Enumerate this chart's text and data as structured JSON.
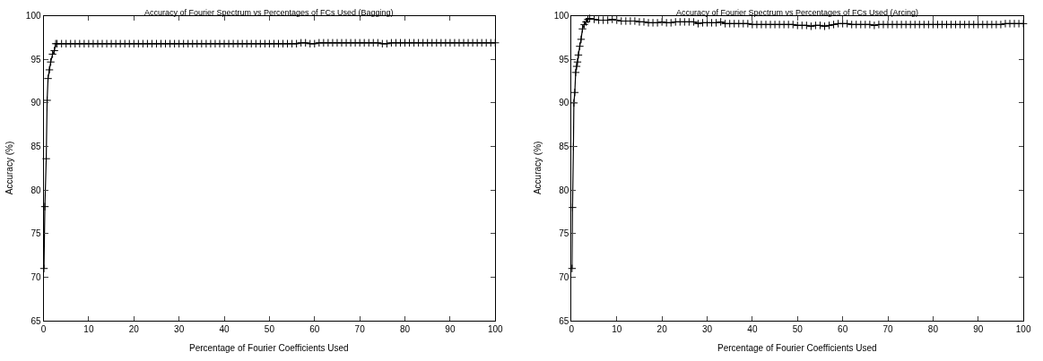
{
  "chart_data": [
    {
      "type": "line",
      "title": "Accuracy of Fourier Spectrum vs Percentages of FCs Used (Bagging)",
      "xlabel": "Percentage of Fourier Coefficients Used",
      "ylabel": "Accuracy (%)",
      "xlim": [
        0,
        100
      ],
      "xticks": [
        0,
        10,
        20,
        30,
        40,
        50,
        60,
        70,
        80,
        90,
        100
      ],
      "ylim": [
        65,
        100
      ],
      "yticks": [
        65,
        70,
        75,
        80,
        85,
        90,
        95,
        100
      ],
      "marker": "cross",
      "line_style": "solid",
      "series": [
        {
          "color": "#000000",
          "x": [
            0.1,
            0.3,
            0.6,
            0.8,
            1.0,
            1.3,
            1.6,
            2.0,
            2.4,
            2.7,
            3,
            4,
            5,
            6,
            7,
            8,
            9,
            10,
            11,
            12,
            13,
            14,
            15,
            16,
            17,
            18,
            19,
            20,
            21,
            22,
            23,
            24,
            25,
            26,
            27,
            28,
            29,
            30,
            31,
            32,
            33,
            34,
            35,
            36,
            37,
            38,
            39,
            40,
            41,
            42,
            43,
            44,
            45,
            46,
            47,
            48,
            49,
            50,
            51,
            52,
            53,
            54,
            55,
            56,
            57,
            58,
            59,
            60,
            61,
            62,
            63,
            64,
            65,
            66,
            67,
            68,
            69,
            70,
            71,
            72,
            73,
            74,
            75,
            76,
            77,
            78,
            79,
            80,
            81,
            82,
            83,
            84,
            85,
            86,
            87,
            88,
            89,
            90,
            91,
            92,
            93,
            94,
            95,
            96,
            97,
            98,
            99,
            100
          ],
          "values": [
            71.0,
            78.1,
            83.6,
            90.3,
            92.8,
            93.8,
            94.7,
            95.6,
            96.0,
            96.8,
            96.8,
            96.8,
            96.8,
            96.8,
            96.8,
            96.8,
            96.8,
            96.8,
            96.8,
            96.8,
            96.8,
            96.8,
            96.8,
            96.8,
            96.8,
            96.8,
            96.8,
            96.8,
            96.8,
            96.8,
            96.8,
            96.8,
            96.8,
            96.8,
            96.8,
            96.8,
            96.8,
            96.8,
            96.8,
            96.8,
            96.8,
            96.8,
            96.8,
            96.8,
            96.8,
            96.8,
            96.8,
            96.8,
            96.8,
            96.8,
            96.8,
            96.8,
            96.8,
            96.8,
            96.8,
            96.8,
            96.8,
            96.8,
            96.8,
            96.8,
            96.8,
            96.8,
            96.8,
            96.8,
            96.9,
            96.9,
            96.8,
            96.8,
            96.9,
            96.9,
            96.9,
            96.9,
            96.9,
            96.9,
            96.9,
            96.9,
            96.9,
            96.9,
            96.9,
            96.9,
            96.9,
            96.9,
            96.8,
            96.8,
            96.9,
            96.9,
            96.9,
            96.9,
            96.9,
            96.9,
            96.9,
            96.9,
            96.9,
            96.9,
            96.9,
            96.9,
            96.9,
            96.9,
            96.9,
            96.9,
            96.9,
            96.9,
            96.9,
            96.9,
            96.9,
            96.9,
            96.9,
            96.9
          ]
        }
      ]
    },
    {
      "type": "line",
      "title": "Accuracy of Fourier Spectrum vs Percentages of FCs Used (Arcing)",
      "xlabel": "Percentage of Fourier Coefficients Used",
      "ylabel": "Accuracy (%)",
      "xlim": [
        0,
        100
      ],
      "xticks": [
        0,
        10,
        20,
        30,
        40,
        50,
        60,
        70,
        80,
        90,
        100
      ],
      "ylim": [
        65,
        100
      ],
      "yticks": [
        65,
        70,
        75,
        80,
        85,
        90,
        95,
        100
      ],
      "marker": "cross",
      "line_style": "solid",
      "series": [
        {
          "color": "#000000",
          "x": [
            0.1,
            0.2,
            0.4,
            0.5,
            0.7,
            0.9,
            1.1,
            1.3,
            1.5,
            1.8,
            2.1,
            2.4,
            2.8,
            3.2,
            3.6,
            4,
            5,
            6,
            7,
            8,
            9,
            10,
            11,
            12,
            13,
            14,
            15,
            16,
            17,
            18,
            19,
            20,
            21,
            22,
            23,
            24,
            25,
            26,
            27,
            28,
            29,
            30,
            31,
            32,
            33,
            34,
            35,
            36,
            37,
            38,
            39,
            40,
            41,
            42,
            43,
            44,
            45,
            46,
            47,
            48,
            49,
            50,
            51,
            52,
            53,
            54,
            55,
            56,
            57,
            58,
            59,
            60,
            61,
            62,
            63,
            64,
            65,
            66,
            67,
            68,
            69,
            70,
            71,
            72,
            73,
            74,
            75,
            76,
            77,
            78,
            79,
            80,
            81,
            82,
            83,
            84,
            85,
            86,
            87,
            88,
            89,
            90,
            91,
            92,
            93,
            94,
            95,
            96,
            97,
            98,
            99,
            100
          ],
          "values": [
            71.0,
            78.0,
            85.0,
            90.0,
            91.2,
            93.5,
            94.2,
            94.7,
            95.5,
            96.5,
            97.3,
            98.5,
            99.0,
            99.3,
            99.6,
            99.7,
            99.6,
            99.5,
            99.5,
            99.5,
            99.6,
            99.5,
            99.4,
            99.4,
            99.4,
            99.4,
            99.3,
            99.3,
            99.2,
            99.2,
            99.2,
            99.3,
            99.2,
            99.2,
            99.3,
            99.3,
            99.3,
            99.3,
            99.3,
            99.1,
            99.2,
            99.2,
            99.2,
            99.2,
            99.3,
            99.1,
            99.1,
            99.1,
            99.1,
            99.1,
            99.1,
            99.0,
            99.0,
            99.0,
            99.0,
            99.0,
            99.0,
            99.0,
            99.0,
            99.0,
            99.0,
            98.9,
            98.9,
            98.9,
            98.8,
            98.9,
            98.9,
            98.8,
            98.9,
            99.0,
            99.1,
            99.1,
            99.1,
            99.0,
            99.0,
            99.0,
            99.0,
            99.0,
            98.9,
            99.0,
            99.0,
            99.0,
            99.0,
            99.0,
            99.0,
            99.0,
            99.0,
            99.0,
            99.0,
            99.0,
            99.0,
            99.0,
            99.0,
            99.0,
            99.0,
            99.0,
            99.0,
            99.0,
            99.0,
            99.0,
            99.0,
            99.0,
            99.0,
            99.0,
            99.0,
            99.0,
            99.0,
            99.1,
            99.1,
            99.1,
            99.1,
            99.1
          ]
        }
      ]
    }
  ]
}
